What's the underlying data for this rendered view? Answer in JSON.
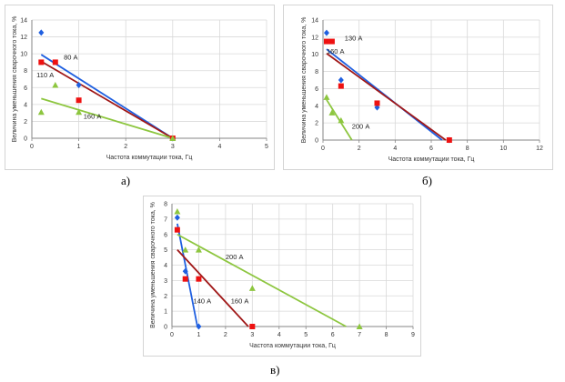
{
  "colors": {
    "blue": "#1f5fe0",
    "red": "#a01818",
    "green": "#8dc63f",
    "red_marker": "#ee1111",
    "axis": "#868686",
    "grid": "#d9d9d9",
    "text": "#333333"
  },
  "chart_data": [
    {
      "type": "scatter",
      "caption": "а)",
      "xlabel": "Частота коммутации тока, Гц",
      "ylabel": "Величина уменьшения сварочного тока, %",
      "xlim": [
        0,
        5
      ],
      "ylim": [
        0,
        14
      ],
      "xticks": [
        "0",
        "1",
        "2",
        "3",
        "4",
        "5"
      ],
      "yticks": [
        "0",
        "2",
        "4",
        "6",
        "8",
        "10",
        "12",
        "14"
      ],
      "grid": true,
      "series": [
        {
          "name": "80 А",
          "color": "blue",
          "marker": "diamond",
          "points": [
            [
              0.2,
              12.5
            ],
            [
              1.0,
              6.3
            ],
            [
              3.0,
              0.0
            ]
          ],
          "trend": [
            [
              0.2,
              9.9
            ],
            [
              3.0,
              0.0
            ]
          ]
        },
        {
          "name": "110 А",
          "color": "red",
          "marker": "square",
          "points": [
            [
              0.2,
              9.0
            ],
            [
              0.5,
              9.0
            ],
            [
              1.0,
              4.5
            ],
            [
              3.0,
              0.0
            ]
          ],
          "trend": [
            [
              0.2,
              9.1
            ],
            [
              3.0,
              0.0
            ]
          ]
        },
        {
          "name": "160 А",
          "color": "green",
          "marker": "triangle",
          "points": [
            [
              0.2,
              3.1
            ],
            [
              0.5,
              6.3
            ],
            [
              1.0,
              3.1
            ],
            [
              3.0,
              0.0
            ]
          ],
          "trend": [
            [
              0.2,
              4.7
            ],
            [
              3.0,
              0.0
            ]
          ]
        }
      ],
      "annotations": [
        {
          "text": "80 А",
          "x": 0.68,
          "y": 9.3
        },
        {
          "text": "110 А",
          "x": 0.1,
          "y": 7.2
        },
        {
          "text": "160 А",
          "x": 1.1,
          "y": 2.3
        }
      ]
    },
    {
      "type": "scatter",
      "caption": "б)",
      "xlabel": "Частота коммутации тока, Гц",
      "ylabel": "Величина уменьшения сварочного тока, %",
      "xlim": [
        0,
        12
      ],
      "ylim": [
        0,
        14
      ],
      "xticks": [
        "0",
        "2",
        "4",
        "6",
        "8",
        "10",
        "12"
      ],
      "yticks": [
        "0",
        "2",
        "4",
        "6",
        "8",
        "10",
        "12",
        "14"
      ],
      "grid": true,
      "series": [
        {
          "name": "130 А",
          "color": "blue",
          "marker": "diamond",
          "points": [
            [
              0.2,
              12.5
            ],
            [
              1.0,
              7.0
            ],
            [
              3.0,
              3.8
            ],
            [
              7.0,
              0.0
            ]
          ],
          "trend": [
            [
              0.2,
              10.6
            ],
            [
              6.6,
              0.0
            ]
          ]
        },
        {
          "name": "160 А",
          "color": "red",
          "marker": "square",
          "points": [
            [
              0.2,
              11.5
            ],
            [
              0.5,
              11.5
            ],
            [
              1.0,
              6.3
            ],
            [
              3.0,
              4.3
            ],
            [
              7.0,
              0.0
            ]
          ],
          "trend": [
            [
              0.2,
              10.1
            ],
            [
              6.8,
              0.0
            ]
          ]
        },
        {
          "name": "200 А",
          "color": "green",
          "marker": "triangle",
          "points": [
            [
              0.2,
              5.0
            ],
            [
              0.5,
              3.2
            ],
            [
              1.0,
              2.3
            ]
          ],
          "trend": [
            [
              0.2,
              4.7
            ],
            [
              1.6,
              0.0
            ]
          ]
        }
      ],
      "annotations": [
        {
          "text": "130 А",
          "x": 1.2,
          "y": 11.6
        },
        {
          "text": "160 А",
          "x": 0.2,
          "y": 10.1
        },
        {
          "text": "200 А",
          "x": 1.6,
          "y": 1.3
        }
      ]
    },
    {
      "type": "scatter",
      "caption": "в)",
      "xlabel": "Частота коммутации тока, Гц",
      "ylabel": "Величина уменьшения сварочного тока, %",
      "xlim": [
        0,
        9
      ],
      "ylim": [
        0,
        8
      ],
      "xticks": [
        "0",
        "1",
        "2",
        "3",
        "4",
        "5",
        "6",
        "7",
        "8",
        "9"
      ],
      "yticks": [
        "0",
        "1",
        "2",
        "3",
        "4",
        "5",
        "6",
        "7",
        "8"
      ],
      "grid": true,
      "series": [
        {
          "name": "140 А",
          "color": "blue",
          "marker": "diamond",
          "points": [
            [
              0.2,
              7.1
            ],
            [
              0.5,
              3.6
            ],
            [
              1.0,
              0.0
            ]
          ],
          "trend": [
            [
              0.2,
              6.7
            ],
            [
              0.95,
              0.0
            ]
          ]
        },
        {
          "name": "160 А",
          "color": "red",
          "marker": "square",
          "points": [
            [
              0.2,
              6.3
            ],
            [
              0.5,
              3.1
            ],
            [
              1.0,
              3.1
            ],
            [
              3.0,
              0.0
            ]
          ],
          "trend": [
            [
              0.2,
              5.0
            ],
            [
              2.85,
              0.0
            ]
          ]
        },
        {
          "name": "200 А",
          "color": "green",
          "marker": "triangle",
          "points": [
            [
              0.2,
              7.5
            ],
            [
              0.5,
              5.0
            ],
            [
              1.0,
              5.0
            ],
            [
              3.0,
              2.5
            ],
            [
              7.0,
              0.0
            ]
          ],
          "trend": [
            [
              0.2,
              6.0
            ],
            [
              6.5,
              0.0
            ]
          ]
        }
      ],
      "annotations": [
        {
          "text": "200 А",
          "x": 2.0,
          "y": 4.4
        },
        {
          "text": "140 А",
          "x": 0.8,
          "y": 1.5
        },
        {
          "text": "160 А",
          "x": 2.2,
          "y": 1.5
        }
      ]
    }
  ]
}
